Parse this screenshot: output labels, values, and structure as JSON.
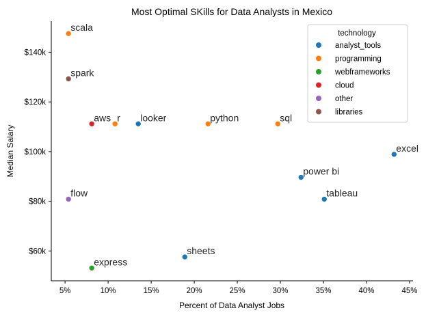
{
  "chart_data": {
    "type": "scatter",
    "title": "Most Optimal SKills for Data Analysts in Mexico",
    "xlabel": "Percent of Data Analyst Jobs",
    "ylabel": "Median Salary",
    "xlim": [
      3.4,
      45.4
    ],
    "ylim": [
      48000,
      152500
    ],
    "xticks": [
      5,
      10,
      15,
      20,
      25,
      30,
      35,
      40,
      45
    ],
    "xtick_labels": [
      "5%",
      "10%",
      "15%",
      "20%",
      "25%",
      "30%",
      "35%",
      "40%",
      "45%"
    ],
    "yticks": [
      60000,
      80000,
      100000,
      120000,
      140000
    ],
    "ytick_labels": [
      "$60k",
      "$80k",
      "$100k",
      "$120k",
      "$140k"
    ],
    "grid": false,
    "legend": {
      "title": "technology",
      "placement": "top-right",
      "entries": [
        {
          "name": "analyst_tools",
          "color": "#1f77b4"
        },
        {
          "name": "programming",
          "color": "#ff7f0e"
        },
        {
          "name": "webframeworks",
          "color": "#2ca02c"
        },
        {
          "name": "cloud",
          "color": "#d62728"
        },
        {
          "name": "other",
          "color": "#9467bd"
        },
        {
          "name": "libraries",
          "color": "#8c564b"
        }
      ]
    },
    "points": [
      {
        "label": "scala",
        "x": 5.4,
        "y": 147500,
        "category": "programming"
      },
      {
        "label": "spark",
        "x": 5.4,
        "y": 129300,
        "category": "libraries"
      },
      {
        "label": "aws",
        "x": 8.1,
        "y": 111175,
        "category": "cloud"
      },
      {
        "label": "r",
        "x": 10.8,
        "y": 111175,
        "category": "programming"
      },
      {
        "label": "looker",
        "x": 13.5,
        "y": 111175,
        "category": "analyst_tools"
      },
      {
        "label": "python",
        "x": 21.6,
        "y": 111175,
        "category": "programming"
      },
      {
        "label": "sql",
        "x": 29.7,
        "y": 111175,
        "category": "programming"
      },
      {
        "label": "excel",
        "x": 43.2,
        "y": 98900,
        "category": "analyst_tools"
      },
      {
        "label": "power bi",
        "x": 32.4,
        "y": 89650,
        "category": "analyst_tools"
      },
      {
        "label": "tableau",
        "x": 35.1,
        "y": 80850,
        "category": "analyst_tools"
      },
      {
        "label": "flow",
        "x": 5.4,
        "y": 80850,
        "category": "other"
      },
      {
        "label": "sheets",
        "x": 18.9,
        "y": 57600,
        "category": "analyst_tools"
      },
      {
        "label": "express",
        "x": 8.1,
        "y": 53150,
        "category": "webframeworks"
      }
    ]
  }
}
